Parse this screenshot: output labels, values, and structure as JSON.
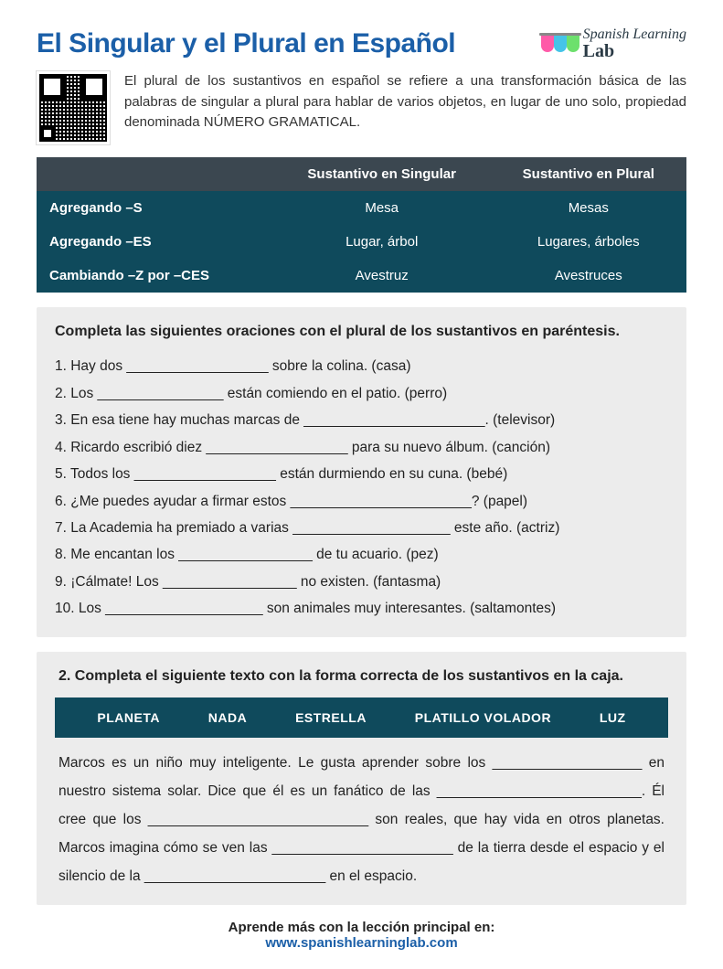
{
  "title": "El Singular y el Plural en Español",
  "logo": {
    "line1": "Spanish Learning",
    "line2": "Lab",
    "beaker_colors": [
      "#ff5aa8",
      "#45c4e8",
      "#6de06d"
    ]
  },
  "intro": "El plural de los sustantivos en español se refiere a una transformación básica de las palabras de singular a plural para hablar de varios objetos, en lugar de uno solo, propiedad denominada NÚMERO GRAMATICAL.",
  "table": {
    "headers": [
      "",
      "Sustantivo en Singular",
      "Sustantivo en Plural"
    ],
    "rows": [
      {
        "rule": "Agregando –S",
        "singular": "Mesa",
        "plural": "Mesas"
      },
      {
        "rule": "Agregando –ES",
        "singular": "Lugar, árbol",
        "plural": "Lugares, árboles"
      },
      {
        "rule": "Cambiando –Z por –CES",
        "singular": "Avestruz",
        "plural": "Avestruces"
      }
    ],
    "header_bg": "#3b4750",
    "body_bg": "#0f4a5c"
  },
  "exercise1": {
    "title": "Completa las siguientes oraciones con el plural de los sustantivos en paréntesis.",
    "items": [
      "1. Hay dos __________________ sobre la colina. (casa)",
      "2. Los ________________ están comiendo en el patio. (perro)",
      "3. En esa tiene hay muchas marcas de _______________________. (televisor)",
      "4. Ricardo escribió diez __________________ para su nuevo álbum. (canción)",
      "5. Todos los __________________ están durmiendo en su cuna. (bebé)",
      "6. ¿Me puedes ayudar a firmar estos _______________________? (papel)",
      "7. La Academia ha premiado a varias ____________________ este año. (actriz)",
      "8. Me encantan los _________________ de tu acuario. (pez)",
      "9. ¡Cálmate! Los _________________ no existen. (fantasma)",
      "10. Los ____________________ son animales muy interesantes. (saltamontes)"
    ]
  },
  "exercise2": {
    "title": "2. Completa el siguiente texto con la forma correcta de los sustantivos en la caja.",
    "words": [
      "PLANETA",
      "NADA",
      "ESTRELLA",
      "PLATILLO VOLADOR",
      "LUZ"
    ],
    "paragraph": "Marcos es un niño muy inteligente. Le gusta aprender sobre los ___________________ en nuestro sistema solar. Dice que él es un fanático de las __________________________. Él cree que los ____________________________ son reales, que hay vida en otros planetas. Marcos imagina cómo se ven las _______________________ de la tierra desde el espacio y el silencio de la _______________________ en el espacio."
  },
  "footer": {
    "line1": "Aprende más con la lección principal en:",
    "line2": "www.spanishlearninglab.com"
  },
  "colors": {
    "title": "#1b5fa8",
    "exercise_bg": "#ececec"
  }
}
